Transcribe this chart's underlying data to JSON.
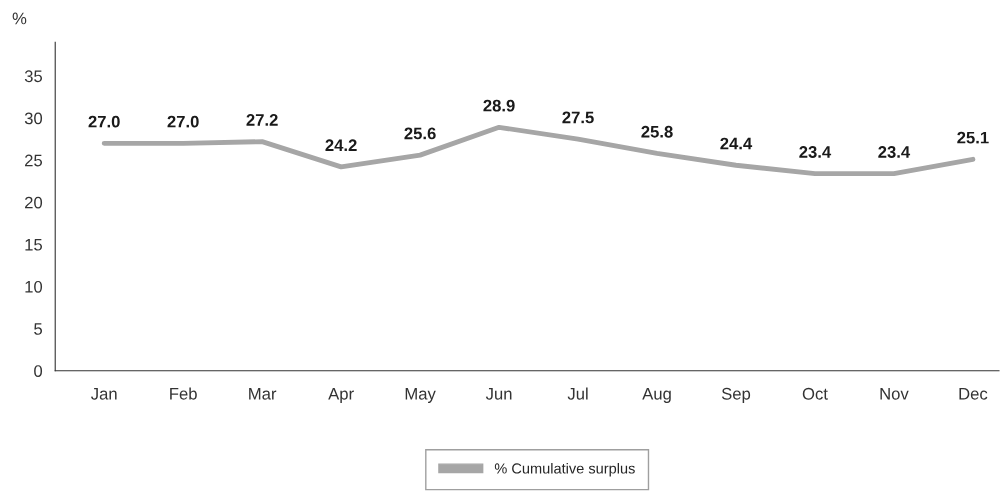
{
  "chart_data": {
    "type": "line",
    "ylabel": "%",
    "categories": [
      "Jan",
      "Feb",
      "Mar",
      "Apr",
      "May",
      "Jun",
      "Jul",
      "Aug",
      "Sep",
      "Oct",
      "Nov",
      "Dec"
    ],
    "series": [
      {
        "name": "% Cumulative surplus",
        "color": "#a6a6a6",
        "values": [
          27.0,
          27.0,
          27.2,
          24.2,
          25.6,
          28.9,
          27.5,
          25.8,
          24.4,
          23.4,
          23.4,
          25.1
        ],
        "value_labels": [
          "27.0",
          "27.0",
          "27.2",
          "24.2",
          "25.6",
          "28.9",
          "27.5",
          "25.8",
          "24.4",
          "23.4",
          "23.4",
          "25.1"
        ]
      }
    ],
    "ylim": [
      0,
      39
    ],
    "yticks": [
      0,
      5,
      10,
      15,
      20,
      25,
      30,
      35
    ],
    "grid": false,
    "legend": "bottom",
    "marker": "none",
    "line_style": "solid"
  }
}
